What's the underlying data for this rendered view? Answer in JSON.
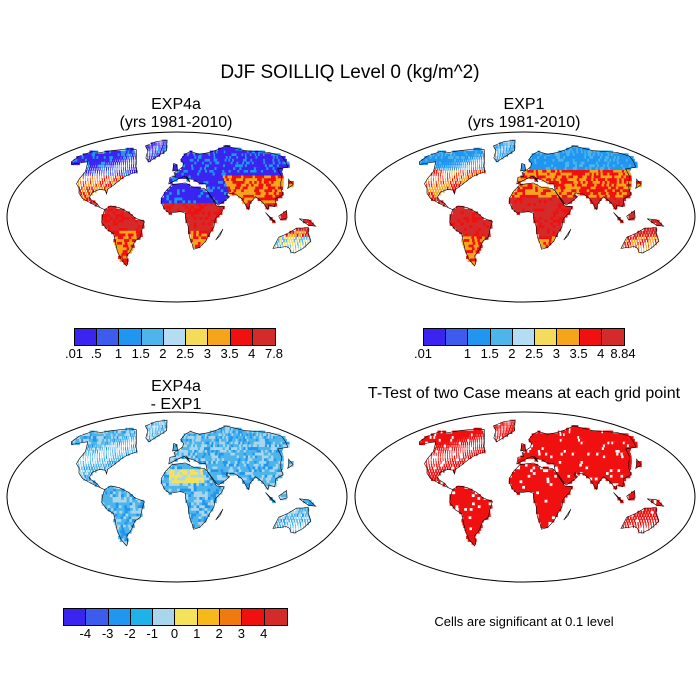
{
  "title": "DJF SOILLIQ Level 0 (kg/m^2)",
  "panels": [
    {
      "id": "exp4a",
      "title_line1": "EXP4a",
      "title_line2": "(yrs 1981-2010)",
      "colorbar": {
        "colors": [
          "#3b24f0",
          "#3d5cee",
          "#2196f0",
          "#4db5ea",
          "#b4dcf2",
          "#f4dc5a",
          "#f6a41a",
          "#f01010",
          "#d42a2a"
        ],
        "labels": [
          ".01",
          ".5",
          "1",
          "1.5",
          "2",
          "2.5",
          "3",
          "3.5",
          "4",
          "7.8"
        ]
      },
      "palette": [
        "#3b24f0",
        "#2196f0",
        "#4db5ea",
        "#f4dc5a",
        "#f6a41a",
        "#f01010",
        "#d42a2a"
      ]
    },
    {
      "id": "exp1",
      "title_line1": "EXP1",
      "title_line2": "(yrs 1981-2010)",
      "colorbar": {
        "colors": [
          "#3b24f0",
          "#3d5cee",
          "#2196f0",
          "#4db5ea",
          "#b4dcf2",
          "#f4dc5a",
          "#f6a41a",
          "#f01010",
          "#d42a2a"
        ],
        "labels": [
          ".01",
          "",
          "1",
          "1.5",
          "2",
          "2.5",
          "3",
          "3.5",
          "4",
          "8.84"
        ]
      },
      "palette": [
        "#2196f0",
        "#4db5ea",
        "#f6a41a",
        "#f01010",
        "#d42a2a"
      ]
    },
    {
      "id": "diff",
      "title_line1": "EXP4a",
      "title_line2": "- EXP1",
      "colorbar": {
        "colors": [
          "#3b24f0",
          "#3d5cee",
          "#2196f0",
          "#1fb2ea",
          "#a9d6ec",
          "#f4e25a",
          "#f6b81a",
          "#f07a10",
          "#f01010",
          "#d42a2a"
        ],
        "labels": [
          "-4",
          "-3",
          "-2",
          "-1",
          "0",
          "1",
          "2",
          "3",
          "4"
        ]
      },
      "palette": [
        "#4db5ea",
        "#a9d6ec",
        "#2196f0",
        "#f4e25a"
      ]
    },
    {
      "id": "ttest",
      "title_line1": "T-Test of two Case means at each grid point",
      "title_line2": "",
      "note": "Cells are significant at 0.1 level",
      "palette": [
        "#f01010",
        "#f01010",
        "#f01010",
        "#ffffff"
      ]
    }
  ]
}
